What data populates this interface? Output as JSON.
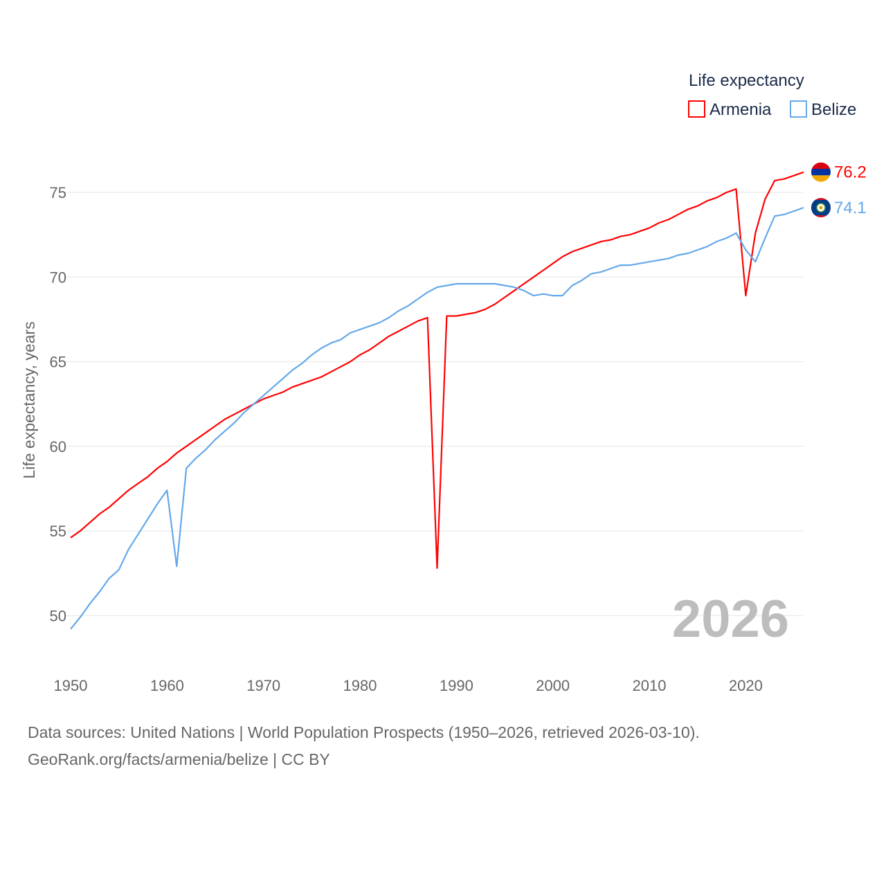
{
  "chart_data": {
    "type": "line",
    "title": "Life expectancy",
    "ylabel": "Life expectancy, years",
    "xlabel": "",
    "xlim": [
      1950,
      2026
    ],
    "ylim": [
      48,
      78
    ],
    "x_ticks": [
      1950,
      1960,
      1970,
      1980,
      1990,
      2000,
      2010,
      2020
    ],
    "y_ticks": [
      50,
      55,
      60,
      65,
      70,
      75
    ],
    "grid": true,
    "legend_position": "top-right",
    "current_year_label": "2026",
    "x_start": 1950,
    "series": [
      {
        "name": "Armenia",
        "color": "#ff0000",
        "end_label": "76.2",
        "values": [
          54.6,
          55.0,
          55.5,
          56.0,
          56.4,
          56.9,
          57.4,
          57.8,
          58.2,
          58.7,
          59.1,
          59.6,
          60.0,
          60.4,
          60.8,
          61.2,
          61.6,
          61.9,
          62.2,
          62.5,
          62.8,
          63.0,
          63.2,
          63.5,
          63.7,
          63.9,
          64.1,
          64.4,
          64.7,
          65.0,
          65.4,
          65.7,
          66.1,
          66.5,
          66.8,
          67.1,
          67.4,
          67.6,
          52.8,
          67.7,
          67.7,
          67.8,
          67.9,
          68.1,
          68.4,
          68.8,
          69.2,
          69.6,
          70.0,
          70.4,
          70.8,
          71.2,
          71.5,
          71.7,
          71.9,
          72.1,
          72.2,
          72.4,
          72.5,
          72.7,
          72.9,
          73.2,
          73.4,
          73.7,
          74.0,
          74.2,
          74.5,
          74.7,
          75.0,
          75.2,
          68.9,
          72.6,
          74.6,
          75.7,
          75.8,
          76.0,
          76.2
        ]
      },
      {
        "name": "Belize",
        "color": "#64a8ea",
        "end_label": "74.1",
        "values": [
          49.2,
          49.9,
          50.7,
          51.4,
          52.2,
          52.7,
          53.9,
          54.8,
          55.7,
          56.6,
          57.4,
          52.9,
          58.7,
          59.3,
          59.8,
          60.4,
          60.9,
          61.4,
          62.0,
          62.5,
          63.0,
          63.5,
          64.0,
          64.5,
          64.9,
          65.4,
          65.8,
          66.1,
          66.3,
          66.7,
          66.9,
          67.1,
          67.3,
          67.6,
          68.0,
          68.3,
          68.7,
          69.1,
          69.4,
          69.5,
          69.6,
          69.6,
          69.6,
          69.6,
          69.6,
          69.5,
          69.4,
          69.2,
          68.9,
          69.0,
          68.9,
          68.9,
          69.5,
          69.8,
          70.2,
          70.3,
          70.5,
          70.7,
          70.7,
          70.8,
          70.9,
          71.0,
          71.1,
          71.3,
          71.4,
          71.6,
          71.8,
          72.1,
          72.3,
          72.6,
          71.6,
          70.9,
          72.3,
          73.6,
          73.7,
          73.9,
          74.1
        ]
      }
    ]
  },
  "footer": {
    "line1": "Data sources: United Nations | World Population Prospects (1950–2026, retrieved 2026-03-10).",
    "line2": "GeoRank.org/facts/armenia/belize | CC BY"
  }
}
